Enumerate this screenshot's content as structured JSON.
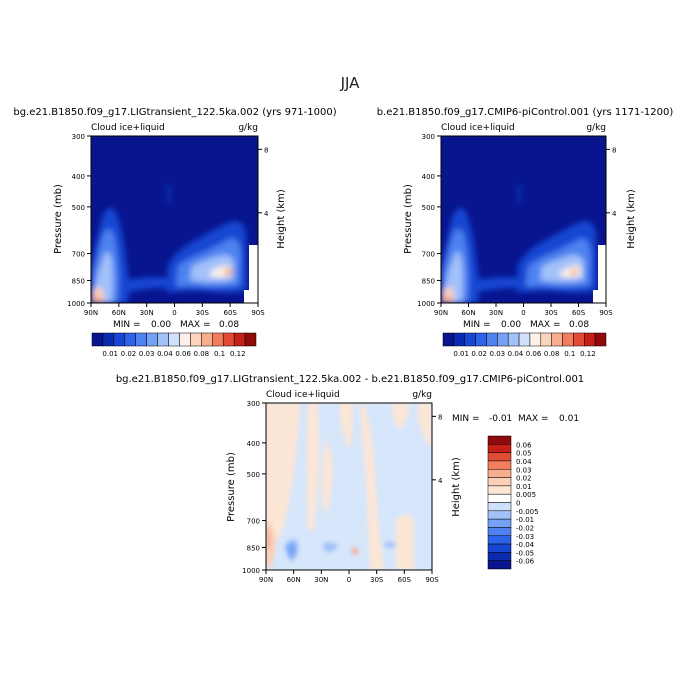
{
  "figure": {
    "season_title": "JJA",
    "ylabel_left": "Pressure (mb)",
    "ylabel_right": "Height (km)",
    "field_label": "Cloud ice+liquid",
    "units": "g/kg",
    "colors": {
      "abs_scale": [
        "#08158f",
        "#0a2bb0",
        "#1746d3",
        "#2d63e6",
        "#4d82f0",
        "#76a2f6",
        "#a2c1f9",
        "#cfe0fc",
        "#fdf0e6",
        "#fcd3bd",
        "#f8ad8f",
        "#f27e5f",
        "#e34c34",
        "#c51f17",
        "#8f0a0a"
      ],
      "diff_scale": [
        "#08158f",
        "#0a2bb0",
        "#1746d3",
        "#2d63e6",
        "#4d82f0",
        "#76a2f6",
        "#a2c1f9",
        "#cfe0fc",
        "#ffffff",
        "#fce6d6",
        "#fbd0b8",
        "#f8ad8f",
        "#f27e5f",
        "#e34c34",
        "#c51f17",
        "#8f0a0a"
      ]
    }
  },
  "chart_data": [
    {
      "type": "heatmap",
      "title": "bg.e21.B1850.f09_g17.LIGtransient_122.5ka.002 (yrs 971-1000)",
      "subtitle_left": "Cloud ice+liquid",
      "subtitle_right": "g/kg",
      "x_tick_labels": [
        "90N",
        "60N",
        "30N",
        "0",
        "30S",
        "60S",
        "90S"
      ],
      "y_tick_labels": [
        "300",
        "400",
        "500",
        "700",
        "850",
        "1000"
      ],
      "y_tick_values": [
        300,
        400,
        500,
        700,
        850,
        1000
      ],
      "y_right_tick_labels": [
        "8",
        "4"
      ],
      "ylabel": "Pressure (mb)",
      "y2label": "Height (km)",
      "stats": {
        "min_label": "MIN =",
        "min": "0.00",
        "max_label": "MAX =",
        "max": "0.08"
      },
      "colorbar_labels": [
        "0.01",
        "0.02",
        "0.03",
        "0.04",
        "0.06",
        "0.08",
        "0.1",
        "0.12"
      ]
    },
    {
      "type": "heatmap",
      "title": "b.e21.B1850.f09_g17.CMIP6-piControl.001 (yrs 1171-1200)",
      "subtitle_left": "Cloud ice+liquid",
      "subtitle_right": "g/kg",
      "x_tick_labels": [
        "90N",
        "60N",
        "30N",
        "0",
        "30S",
        "60S",
        "90S"
      ],
      "y_tick_labels": [
        "300",
        "400",
        "500",
        "700",
        "850",
        "1000"
      ],
      "y_tick_values": [
        300,
        400,
        500,
        700,
        850,
        1000
      ],
      "y_right_tick_labels": [
        "8",
        "4"
      ],
      "ylabel": "Pressure (mb)",
      "y2label": "Height (km)",
      "stats": {
        "min_label": "MIN =",
        "min": "0.00",
        "max_label": "MAX =",
        "max": "0.08"
      },
      "colorbar_labels": [
        "0.01",
        "0.02",
        "0.03",
        "0.04",
        "0.06",
        "0.08",
        "0.1",
        "0.12"
      ]
    },
    {
      "type": "heatmap",
      "title": "bg.e21.B1850.f09_g17.LIGtransient_122.5ka.002 - b.e21.B1850.f09_g17.CMIP6-piControl.001",
      "subtitle_left": "Cloud ice+liquid",
      "subtitle_right": "g/kg",
      "x_tick_labels": [
        "90N",
        "60N",
        "30N",
        "0",
        "30S",
        "60S",
        "90S"
      ],
      "y_tick_labels": [
        "300",
        "400",
        "500",
        "700",
        "850",
        "1000"
      ],
      "y_tick_values": [
        300,
        400,
        500,
        700,
        850,
        1000
      ],
      "y_right_tick_labels": [
        "8",
        "4"
      ],
      "ylabel": "Pressure (mb)",
      "y2label": "Height (km)",
      "stats": {
        "min_label": "MIN =",
        "min": "-0.01",
        "max_label": "MAX =",
        "max": "0.01"
      },
      "colorbar_labels": [
        "0.06",
        "0.05",
        "0.04",
        "0.03",
        "0.02",
        "0.01",
        "0.005",
        "0",
        "-0.005",
        "-0.01",
        "-0.02",
        "-0.03",
        "-0.04",
        "-0.05",
        "-0.06"
      ]
    }
  ]
}
